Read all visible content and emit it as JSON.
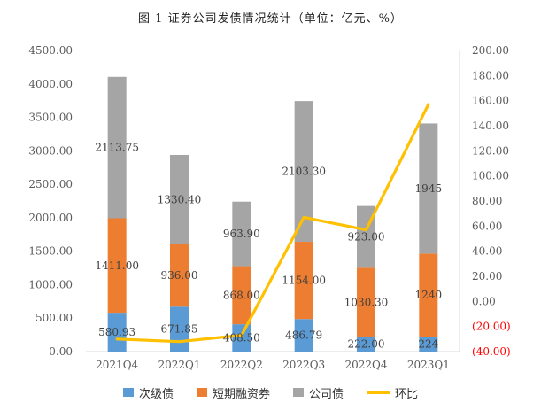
{
  "chart_data": {
    "type": "bar+line",
    "title": "图 1   证券公司发债情况统计（单位：亿元、%）",
    "categories": [
      "2021Q4",
      "2022Q1",
      "2022Q2",
      "2022Q3",
      "2022Q4",
      "2023Q1"
    ],
    "series": [
      {
        "name": "次级债",
        "type": "stacked-bar",
        "axis": "left",
        "color": "#5b9bd5",
        "values": [
          580.93,
          671.85,
          408.5,
          486.79,
          222.0,
          224
        ],
        "labels": [
          "580.93",
          "671.85",
          "408.50",
          "486.79",
          "222.00",
          "224"
        ]
      },
      {
        "name": "短期融资券",
        "type": "stacked-bar",
        "axis": "left",
        "color": "#ed7d31",
        "values": [
          1411.0,
          936.0,
          868.0,
          1154.0,
          1030.3,
          1240
        ],
        "labels": [
          "1411.00",
          "936.00",
          "868.00",
          "1154.00",
          "1030.30",
          "1240"
        ]
      },
      {
        "name": "公司债",
        "type": "stacked-bar",
        "axis": "left",
        "color": "#a5a5a5",
        "values": [
          2113.75,
          1330.4,
          963.9,
          2103.3,
          923.0,
          1945
        ],
        "labels": [
          "2113.75",
          "1330.40",
          "963.90",
          "2103.30",
          "923.00",
          "1945"
        ]
      },
      {
        "name": "环比",
        "type": "line",
        "axis": "right",
        "color": "#ffc000",
        "values": [
          -30,
          -32,
          -27,
          67,
          57,
          157
        ]
      }
    ],
    "y_left": {
      "min": 0,
      "max": 4500,
      "step": 500,
      "ticks": [
        "0.00",
        "500.00",
        "1000.00",
        "1500.00",
        "2000.00",
        "2500.00",
        "3000.00",
        "3500.00",
        "4000.00",
        "4500.00"
      ]
    },
    "y_right": {
      "min": -40,
      "max": 200,
      "step": 20,
      "ticks": [
        "(40.00)",
        "(20.00)",
        "0.00",
        "20.00",
        "40.00",
        "60.00",
        "80.00",
        "100.00",
        "120.00",
        "140.00",
        "160.00",
        "180.00",
        "200.00"
      ],
      "negative_color": "#ff0000"
    },
    "grid": false,
    "legend_position": "bottom"
  }
}
